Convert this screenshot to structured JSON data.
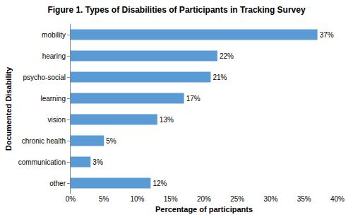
{
  "chart_data": {
    "type": "bar",
    "orientation": "horizontal",
    "title": "Figure 1. Types of Disabilities of Participants in Tracking Survey",
    "x_label": "Percentage of participants",
    "y_label": "Documented Disability",
    "categories": [
      "mobility",
      "hearing",
      "psycho-social",
      "learning",
      "vision",
      "chronic health",
      "communication",
      "other"
    ],
    "values": [
      37,
      22,
      21,
      17,
      13,
      5,
      3,
      12
    ],
    "value_labels": [
      "37%",
      "22%",
      "21%",
      "17%",
      "13%",
      "5%",
      "3%",
      "12%"
    ],
    "data_labels": true,
    "color": "#5b9bd5",
    "xlim": [
      0,
      40
    ],
    "xticks": [
      {
        "value": 0,
        "label": "0%"
      },
      {
        "value": 5,
        "label": "5%"
      },
      {
        "value": 10,
        "label": "10%"
      },
      {
        "value": 15,
        "label": "15%"
      },
      {
        "value": 20,
        "label": "20%"
      },
      {
        "value": 25,
        "label": "25%"
      },
      {
        "value": 30,
        "label": "30%"
      },
      {
        "value": 35,
        "label": "35%"
      },
      {
        "value": 40,
        "label": "40%"
      }
    ],
    "grid": false
  }
}
